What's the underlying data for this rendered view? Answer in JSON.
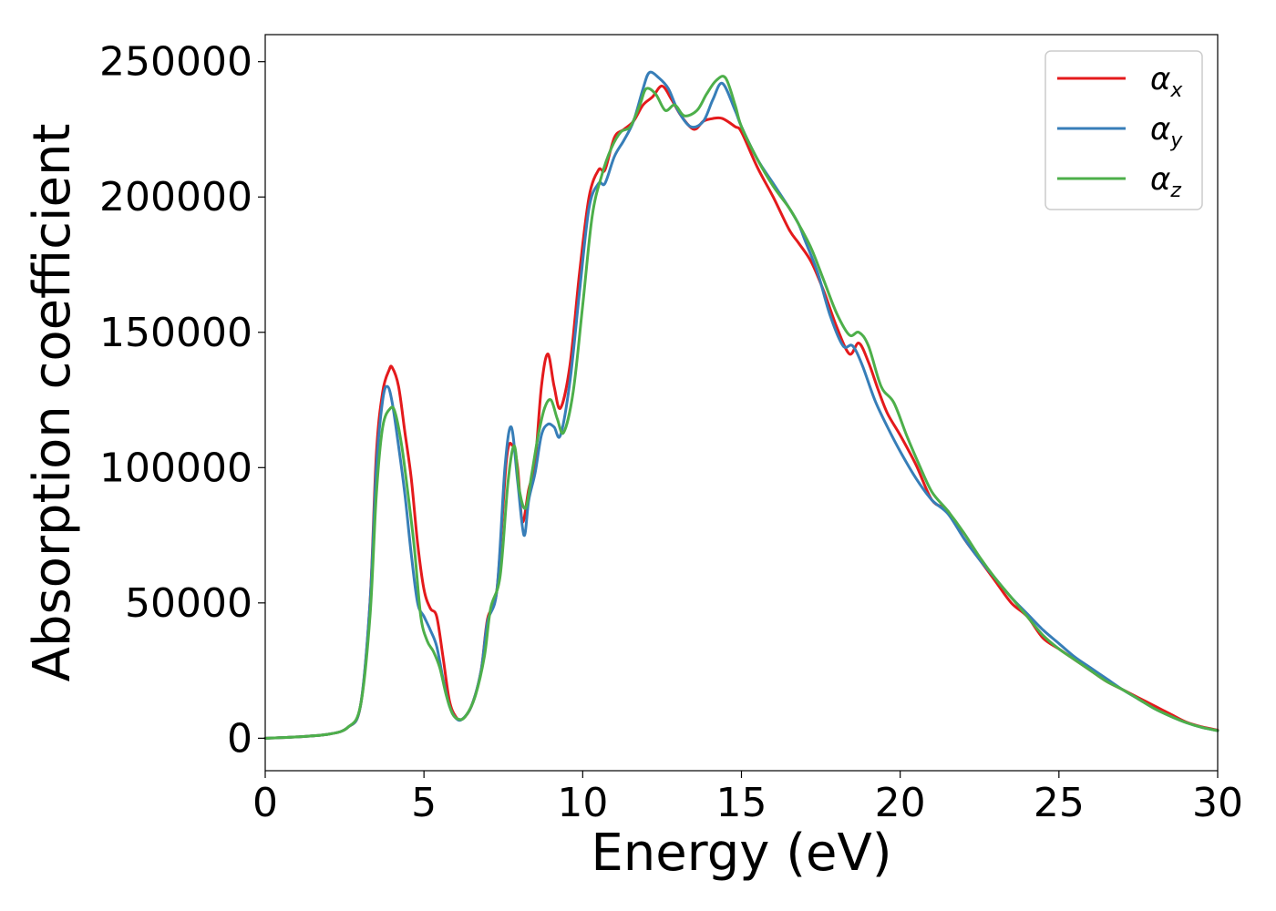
{
  "chart_data": {
    "type": "line",
    "xlabel": "Energy (eV)",
    "ylabel": "Absorption coefficient",
    "xlim": [
      0,
      30
    ],
    "ylim": [
      -12000,
      260000
    ],
    "xticks": [
      "0",
      "5",
      "10",
      "15",
      "20",
      "25",
      "30"
    ],
    "yticks": [
      "0",
      "50000",
      "100000",
      "150000",
      "200000",
      "250000"
    ],
    "grid": false,
    "legend_position": "top-right",
    "series": [
      {
        "name": "αx",
        "symbol": "α",
        "subscript": "x",
        "color": "#e41a1c",
        "x": [
          0,
          1,
          2,
          2.6,
          3.0,
          3.3,
          3.5,
          3.7,
          3.9,
          4.0,
          4.2,
          4.4,
          4.6,
          4.8,
          5.0,
          5.2,
          5.4,
          5.6,
          5.8,
          6.0,
          6.2,
          6.5,
          6.8,
          7.0,
          7.3,
          7.6,
          7.8,
          7.95,
          8.1,
          8.3,
          8.5,
          8.7,
          8.9,
          9.1,
          9.3,
          9.6,
          9.9,
          10.2,
          10.5,
          10.7,
          11.0,
          11.3,
          11.6,
          11.9,
          12.2,
          12.5,
          12.8,
          13.1,
          13.5,
          13.8,
          14.1,
          14.4,
          14.8,
          15.0,
          15.5,
          16.0,
          16.5,
          16.8,
          17.2,
          17.6,
          18.0,
          18.4,
          18.7,
          19.0,
          19.3,
          19.6,
          20.0,
          20.5,
          21.0,
          21.5,
          22.0,
          22.5,
          23.0,
          23.5,
          24.0,
          24.5,
          25.0,
          25.5,
          26.0,
          26.5,
          27.0,
          27.5,
          28.0,
          28.5,
          29.0,
          29.5,
          30.0
        ],
        "values": [
          0,
          500,
          1500,
          4000,
          12000,
          50000,
          105000,
          128000,
          136000,
          137000,
          130000,
          113000,
          96000,
          72000,
          55000,
          48000,
          45000,
          30000,
          14000,
          8000,
          7000,
          12000,
          25000,
          44000,
          55000,
          103000,
          108000,
          100000,
          80000,
          92000,
          102000,
          130000,
          142000,
          130000,
          122000,
          138000,
          172000,
          200000,
          210000,
          210000,
          222000,
          225000,
          228000,
          234000,
          237000,
          241000,
          236000,
          230000,
          225000,
          228000,
          229000,
          229000,
          226000,
          224000,
          211000,
          200000,
          188000,
          183000,
          176000,
          165000,
          152000,
          142000,
          146000,
          139000,
          129000,
          120000,
          112000,
          101000,
          88000,
          84000,
          74000,
          66000,
          58000,
          50000,
          45000,
          37000,
          33000,
          29000,
          25000,
          21000,
          18000,
          15000,
          12000,
          9000,
          6000,
          4200,
          3000
        ]
      },
      {
        "name": "αy",
        "symbol": "α",
        "subscript": "y",
        "color": "#377eb8",
        "x": [
          0,
          1,
          2,
          2.6,
          3.0,
          3.3,
          3.5,
          3.7,
          3.85,
          4.0,
          4.2,
          4.4,
          4.6,
          4.8,
          5.0,
          5.2,
          5.4,
          5.6,
          5.8,
          6.0,
          6.2,
          6.5,
          6.8,
          7.0,
          7.3,
          7.55,
          7.75,
          7.95,
          8.15,
          8.3,
          8.5,
          8.7,
          8.9,
          9.1,
          9.3,
          9.6,
          9.9,
          10.2,
          10.5,
          10.7,
          11.0,
          11.3,
          11.6,
          11.9,
          12.1,
          12.4,
          12.7,
          13.0,
          13.4,
          13.8,
          14.1,
          14.4,
          14.8,
          15.0,
          15.5,
          16.0,
          16.5,
          16.8,
          17.0,
          17.4,
          17.8,
          18.2,
          18.5,
          18.8,
          19.2,
          19.6,
          20.0,
          20.5,
          21.0,
          21.5,
          22.0,
          22.5,
          23.0,
          23.5,
          24.0,
          24.5,
          25.0,
          25.5,
          26.0,
          26.5,
          27.0,
          27.5,
          28.0,
          28.5,
          29.0,
          29.5,
          30.0
        ],
        "values": [
          0,
          500,
          1500,
          4000,
          12000,
          50000,
          100000,
          125000,
          130000,
          124000,
          108000,
          90000,
          68000,
          50000,
          45000,
          40000,
          34000,
          22000,
          12000,
          7500,
          7000,
          12000,
          25000,
          43000,
          55000,
          100000,
          115000,
          95000,
          75000,
          88000,
          98000,
          112000,
          116000,
          115000,
          112000,
          132000,
          165000,
          196000,
          205000,
          205000,
          215000,
          221000,
          228000,
          240000,
          246000,
          244000,
          240000,
          232000,
          226000,
          228000,
          236000,
          242000,
          232000,
          226000,
          214000,
          205000,
          196000,
          190000,
          184000,
          172000,
          156000,
          145000,
          145000,
          138000,
          125000,
          115000,
          106000,
          96000,
          88000,
          83000,
          74000,
          66000,
          59000,
          52000,
          46000,
          40000,
          35000,
          30000,
          26000,
          22000,
          18000,
          14500,
          11000,
          8200,
          5800,
          4000,
          2800
        ]
      },
      {
        "name": "αz",
        "symbol": "α",
        "subscript": "z",
        "color": "#4daf4a",
        "x": [
          0,
          1,
          2,
          2.6,
          3.0,
          3.3,
          3.5,
          3.7,
          3.95,
          4.1,
          4.3,
          4.5,
          4.7,
          4.9,
          5.1,
          5.3,
          5.5,
          5.7,
          5.9,
          6.1,
          6.3,
          6.6,
          6.9,
          7.1,
          7.4,
          7.65,
          7.85,
          8.0,
          8.2,
          8.4,
          8.6,
          8.8,
          9.0,
          9.2,
          9.4,
          9.7,
          10.0,
          10.3,
          10.6,
          10.9,
          11.2,
          11.5,
          11.8,
          12.0,
          12.3,
          12.6,
          12.9,
          13.2,
          13.6,
          13.9,
          14.2,
          14.5,
          14.8,
          15.0,
          15.5,
          16.0,
          16.5,
          16.8,
          17.2,
          17.6,
          18.0,
          18.4,
          18.7,
          19.0,
          19.4,
          19.8,
          20.2,
          20.6,
          21.0,
          21.5,
          22.0,
          22.5,
          23.0,
          23.5,
          24.0,
          24.5,
          25.0,
          25.5,
          26.0,
          26.5,
          27.0,
          27.5,
          28.0,
          28.5,
          29.0,
          29.5,
          30.0
        ],
        "values": [
          0,
          500,
          1500,
          4000,
          12000,
          45000,
          90000,
          115000,
          122000,
          120000,
          108000,
          90000,
          70000,
          45000,
          36000,
          32000,
          26000,
          16000,
          9000,
          7000,
          8000,
          15000,
          30000,
          48000,
          60000,
          95000,
          108000,
          92000,
          85000,
          98000,
          112000,
          122000,
          125000,
          118000,
          113000,
          128000,
          160000,
          193000,
          208000,
          218000,
          224000,
          226000,
          234000,
          240000,
          238000,
          232000,
          234000,
          230000,
          232000,
          238000,
          243000,
          244000,
          234000,
          226000,
          214000,
          204000,
          196000,
          190000,
          181000,
          169000,
          157000,
          149000,
          150000,
          145000,
          130000,
          124000,
          112000,
          101000,
          91000,
          84000,
          76000,
          67000,
          59000,
          52000,
          45000,
          38000,
          33000,
          29000,
          25000,
          21000,
          18000,
          14500,
          11000,
          8200,
          5800,
          4000,
          2800
        ]
      }
    ]
  }
}
